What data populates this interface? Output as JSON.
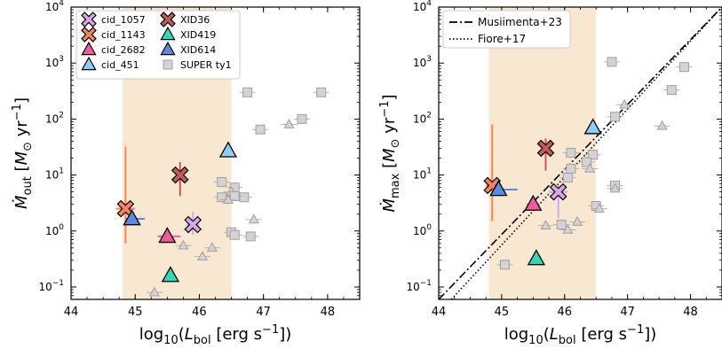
{
  "chart_data": [
    {
      "type": "scatter",
      "xlabel": "log10(Lbol [erg s^-1])",
      "ylabel": "Ṁout [M⊙ yr^-1]",
      "xlim": [
        44,
        48.5
      ],
      "ylim": [
        0.06,
        10000
      ],
      "y_scale": "log",
      "x_ticks": [
        "44",
        "45",
        "46",
        "47",
        "48"
      ],
      "y_ticks": [
        {
          "value": 0.1,
          "base": "10",
          "exp": "−1"
        },
        {
          "value": 1,
          "base": "10",
          "exp": "0"
        },
        {
          "value": 10,
          "base": "10",
          "exp": "1"
        },
        {
          "value": 100,
          "base": "10",
          "exp": "2"
        },
        {
          "value": 1000,
          "base": "10",
          "exp": "3"
        },
        {
          "value": 10000,
          "base": "10",
          "exp": "4"
        }
      ],
      "shaded_band": {
        "x": [
          44.8,
          46.5
        ],
        "color": "#f8e8d2"
      },
      "legend_position": "top-left",
      "series": [
        {
          "name": "cid_1057",
          "marker": "x",
          "color": "#d9a6e8",
          "edge": "#4a2a4a",
          "x": 45.9,
          "y": 1.3,
          "yerr": [
            0.85,
            2.2
          ],
          "xerr": [
            45.8,
            46.0
          ]
        },
        {
          "name": "cid_1143",
          "marker": "x",
          "color": "#f7845a",
          "edge": "#4a2a20",
          "x": 44.85,
          "y": 2.5,
          "yerr": [
            0.6,
            32
          ],
          "xerr": [
            44.7,
            45.0
          ]
        },
        {
          "name": "cid_2682",
          "marker": "triangle",
          "color": "#ee5c9c",
          "edge": "#000000",
          "x": 45.5,
          "y": 0.8,
          "xerr": [
            45.35,
            45.7
          ]
        },
        {
          "name": "cid_451",
          "marker": "triangle",
          "color": "#8fcef2",
          "edge": "#000000",
          "x": 46.45,
          "y": 27
        },
        {
          "name": "XID36",
          "marker": "x",
          "color": "#c25a5a",
          "edge": "#3a1a1a",
          "x": 45.7,
          "y": 10,
          "yerr": [
            4.2,
            17
          ]
        },
        {
          "name": "XID419",
          "marker": "triangle",
          "color": "#34d6b7",
          "edge": "#000000",
          "x": 45.55,
          "y": 0.16
        },
        {
          "name": "XID614",
          "marker": "triangle",
          "color": "#5b8be0",
          "edge": "#000000",
          "x": 44.95,
          "y": 1.65,
          "xerr": [
            44.85,
            45.15
          ]
        },
        {
          "name": "SUPER ty1",
          "marker": "square+triangle",
          "color": "#d3d3d3",
          "edge": "#a0a0a0",
          "points": [
            {
              "x": 46.75,
              "y": 300,
              "m": "s"
            },
            {
              "x": 47.9,
              "y": 300,
              "m": "s"
            },
            {
              "x": 47.6,
              "y": 100,
              "m": "s"
            },
            {
              "x": 47.4,
              "y": 80,
              "m": "t"
            },
            {
              "x": 46.95,
              "y": 65,
              "m": "s"
            },
            {
              "x": 46.35,
              "y": 7.5,
              "m": "s"
            },
            {
              "x": 46.55,
              "y": 6.0,
              "m": "s"
            },
            {
              "x": 46.5,
              "y": 5.0,
              "m": "t"
            },
            {
              "x": 46.35,
              "y": 4.0,
              "m": "s"
            },
            {
              "x": 46.7,
              "y": 4.0,
              "m": "s"
            },
            {
              "x": 46.55,
              "y": 4.2,
              "m": "s"
            },
            {
              "x": 46.45,
              "y": 3.6,
              "m": "t"
            },
            {
              "x": 46.85,
              "y": 1.6,
              "m": "t"
            },
            {
              "x": 46.5,
              "y": 0.95,
              "m": "s"
            },
            {
              "x": 46.55,
              "y": 0.85,
              "m": "s"
            },
            {
              "x": 46.8,
              "y": 0.8,
              "m": "s"
            },
            {
              "x": 46.2,
              "y": 0.5,
              "m": "t"
            },
            {
              "x": 45.75,
              "y": 0.55,
              "m": "t"
            },
            {
              "x": 46.05,
              "y": 0.35,
              "m": "t"
            },
            {
              "x": 45.3,
              "y": 0.08,
              "m": "t"
            }
          ]
        }
      ]
    },
    {
      "type": "scatter",
      "xlabel": "log10(Lbol [erg s^-1])",
      "ylabel": "Ṁmax [M⊙ yr^-1]",
      "xlim": [
        44,
        48.5
      ],
      "ylim": [
        0.06,
        10000
      ],
      "y_scale": "log",
      "x_ticks": [
        "44",
        "45",
        "46",
        "47",
        "48"
      ],
      "y_ticks": [
        {
          "value": 0.1,
          "base": "10",
          "exp": "−1"
        },
        {
          "value": 1,
          "base": "10",
          "exp": "0"
        },
        {
          "value": 10,
          "base": "10",
          "exp": "1"
        },
        {
          "value": 100,
          "base": "10",
          "exp": "2"
        },
        {
          "value": 1000,
          "base": "10",
          "exp": "3"
        },
        {
          "value": 10000,
          "base": "10",
          "exp": "4"
        }
      ],
      "shaded_band": {
        "x": [
          44.8,
          46.5
        ],
        "color": "#f8e8d2"
      },
      "legend_position": "top-left",
      "lines": [
        {
          "name": "Musiimenta+23",
          "style": "dashdot",
          "points": [
            [
              44.0,
              0.06
            ],
            [
              48.5,
              10000
            ]
          ]
        },
        {
          "name": "Fiore+17",
          "style": "dotted",
          "points": [
            [
              44.2,
              0.06
            ],
            [
              48.5,
              10000
            ]
          ]
        }
      ],
      "series": [
        {
          "name": "cid_1057",
          "marker": "x",
          "color": "#d9a6e8",
          "x": 45.9,
          "y": 5.0,
          "yerr": [
            1.7,
            6.5
          ],
          "xerr": [
            45.75,
            46.05
          ]
        },
        {
          "name": "cid_1143",
          "marker": "x",
          "color": "#f7845a",
          "x": 44.85,
          "y": 6.5,
          "yerr": [
            1.5,
            80
          ],
          "xerr": [
            44.75,
            44.95
          ]
        },
        {
          "name": "cid_2682",
          "marker": "triangle",
          "color": "#ee5c9c",
          "x": 45.5,
          "y": 3.0,
          "xerr": [
            45.4,
            45.6
          ]
        },
        {
          "name": "cid_451",
          "marker": "triangle",
          "color": "#8fcef2",
          "x": 46.45,
          "y": 70
        },
        {
          "name": "XID36",
          "marker": "x",
          "color": "#c25a5a",
          "x": 45.7,
          "y": 30,
          "yerr": [
            12,
            45
          ]
        },
        {
          "name": "XID419",
          "marker": "triangle",
          "color": "#34d6b7",
          "x": 45.55,
          "y": 0.32
        },
        {
          "name": "XID614",
          "marker": "triangle",
          "color": "#5b8be0",
          "x": 44.95,
          "y": 5.5,
          "xerr": [
            44.85,
            45.25
          ]
        },
        {
          "name": "SUPER ty1",
          "marker": "square+triangle",
          "color": "#d3d3d3",
          "points": [
            {
              "x": 46.75,
              "y": 1050,
              "m": "s"
            },
            {
              "x": 47.9,
              "y": 850,
              "m": "s"
            },
            {
              "x": 47.7,
              "y": 330,
              "m": "s"
            },
            {
              "x": 46.95,
              "y": 180,
              "m": "t"
            },
            {
              "x": 46.8,
              "y": 110,
              "m": "s"
            },
            {
              "x": 47.55,
              "y": 75,
              "m": "t"
            },
            {
              "x": 46.1,
              "y": 25,
              "m": "s"
            },
            {
              "x": 46.45,
              "y": 23,
              "m": "s"
            },
            {
              "x": 46.35,
              "y": 17,
              "m": "s"
            },
            {
              "x": 46.1,
              "y": 13,
              "m": "s"
            },
            {
              "x": 46.4,
              "y": 13,
              "m": "t"
            },
            {
              "x": 46.05,
              "y": 9,
              "m": "s"
            },
            {
              "x": 46.8,
              "y": 6.5,
              "m": "s"
            },
            {
              "x": 46.8,
              "y": 5.7,
              "m": "t"
            },
            {
              "x": 46.5,
              "y": 2.8,
              "m": "s"
            },
            {
              "x": 46.55,
              "y": 2.5,
              "m": "t"
            },
            {
              "x": 46.2,
              "y": 1.45,
              "m": "t"
            },
            {
              "x": 45.95,
              "y": 1.3,
              "m": "s"
            },
            {
              "x": 45.7,
              "y": 1.25,
              "m": "t"
            },
            {
              "x": 46.05,
              "y": 1.05,
              "m": "t"
            },
            {
              "x": 45.05,
              "y": 0.25,
              "m": "s"
            }
          ]
        }
      ]
    }
  ]
}
